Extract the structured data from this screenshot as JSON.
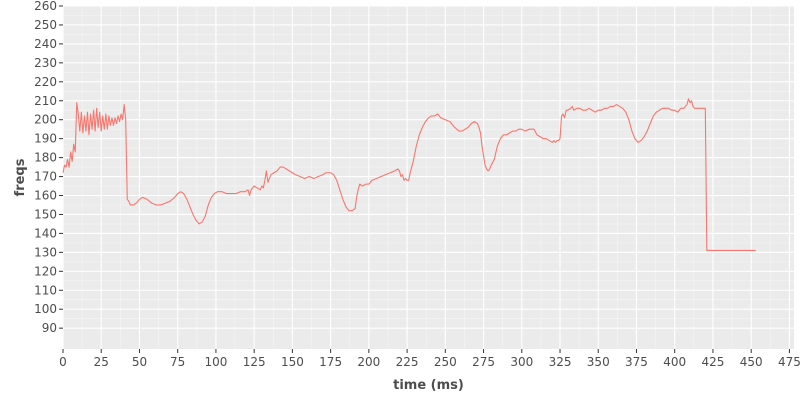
{
  "chart_data": {
    "type": "line",
    "title": "",
    "xlabel": "time (ms)",
    "ylabel": "freqs",
    "xlim": [
      0,
      478
    ],
    "ylim": [
      79,
      260
    ],
    "x_ticks": [
      0,
      25,
      50,
      75,
      100,
      125,
      150,
      175,
      200,
      225,
      250,
      275,
      300,
      325,
      350,
      375,
      400,
      425,
      450,
      475
    ],
    "y_ticks": [
      90,
      100,
      110,
      120,
      130,
      140,
      150,
      160,
      170,
      180,
      190,
      200,
      210,
      220,
      230,
      240,
      250,
      260
    ],
    "grid": true,
    "legend": "none",
    "colors": {
      "panel": "#ebebeb",
      "grid_major": "#ffffff",
      "grid_minor": "#f5f5f5",
      "line": "#f8766d",
      "text": "#4d4d4d",
      "tick": "#333333"
    },
    "series": [
      {
        "points": [
          [
            0,
            172
          ],
          [
            1,
            176
          ],
          [
            2,
            175
          ],
          [
            3,
            179
          ],
          [
            4,
            175
          ],
          [
            5,
            183
          ],
          [
            6,
            178
          ],
          [
            7,
            187
          ],
          [
            8,
            183
          ],
          [
            9,
            209
          ],
          [
            10,
            203
          ],
          [
            11,
            194
          ],
          [
            12,
            204
          ],
          [
            13,
            193
          ],
          [
            14,
            202
          ],
          [
            15,
            194
          ],
          [
            16,
            204
          ],
          [
            17,
            192
          ],
          [
            18,
            203
          ],
          [
            19,
            195
          ],
          [
            20,
            205
          ],
          [
            21,
            194
          ],
          [
            22,
            206
          ],
          [
            23,
            196
          ],
          [
            24,
            204
          ],
          [
            25,
            194
          ],
          [
            26,
            202
          ],
          [
            27,
            195
          ],
          [
            28,
            203
          ],
          [
            29,
            195
          ],
          [
            30,
            202
          ],
          [
            31,
            197
          ],
          [
            32,
            201
          ],
          [
            33,
            197
          ],
          [
            34,
            201
          ],
          [
            35,
            198
          ],
          [
            36,
            202
          ],
          [
            37,
            199
          ],
          [
            38,
            203
          ],
          [
            39,
            200
          ],
          [
            40,
            208
          ],
          [
            41,
            200
          ],
          [
            42,
            158
          ],
          [
            43,
            157
          ],
          [
            44,
            155
          ],
          [
            46,
            155
          ],
          [
            48,
            156
          ],
          [
            50,
            158
          ],
          [
            52,
            159
          ],
          [
            55,
            158
          ],
          [
            58,
            156
          ],
          [
            61,
            155
          ],
          [
            64,
            155
          ],
          [
            67,
            156
          ],
          [
            70,
            157
          ],
          [
            73,
            159
          ],
          [
            75,
            161
          ],
          [
            77,
            162
          ],
          [
            79,
            161
          ],
          [
            81,
            158
          ],
          [
            83,
            154
          ],
          [
            85,
            150
          ],
          [
            87,
            147
          ],
          [
            89,
            145
          ],
          [
            91,
            146
          ],
          [
            93,
            149
          ],
          [
            95,
            155
          ],
          [
            97,
            159
          ],
          [
            99,
            161
          ],
          [
            101,
            162
          ],
          [
            104,
            162
          ],
          [
            107,
            161
          ],
          [
            110,
            161
          ],
          [
            113,
            161
          ],
          [
            116,
            162
          ],
          [
            119,
            162
          ],
          [
            121,
            163
          ],
          [
            122,
            160
          ],
          [
            123,
            163
          ],
          [
            125,
            165
          ],
          [
            127,
            164
          ],
          [
            129,
            163
          ],
          [
            130,
            165
          ],
          [
            131,
            164
          ],
          [
            132,
            168
          ],
          [
            133,
            173
          ],
          [
            134,
            167
          ],
          [
            135,
            169
          ],
          [
            136,
            171
          ],
          [
            138,
            172
          ],
          [
            140,
            173
          ],
          [
            142,
            175
          ],
          [
            144,
            175
          ],
          [
            146,
            174
          ],
          [
            148,
            173
          ],
          [
            150,
            172
          ],
          [
            152,
            171
          ],
          [
            155,
            170
          ],
          [
            158,
            169
          ],
          [
            161,
            170
          ],
          [
            164,
            169
          ],
          [
            167,
            170
          ],
          [
            170,
            171
          ],
          [
            172,
            172
          ],
          [
            175,
            172
          ],
          [
            177,
            171
          ],
          [
            179,
            168
          ],
          [
            181,
            163
          ],
          [
            183,
            158
          ],
          [
            185,
            154
          ],
          [
            187,
            152
          ],
          [
            189,
            152
          ],
          [
            191,
            153
          ],
          [
            192,
            159
          ],
          [
            193,
            163
          ],
          [
            194,
            166
          ],
          [
            196,
            165
          ],
          [
            198,
            166
          ],
          [
            200,
            166
          ],
          [
            202,
            168
          ],
          [
            205,
            169
          ],
          [
            208,
            170
          ],
          [
            211,
            171
          ],
          [
            214,
            172
          ],
          [
            217,
            173
          ],
          [
            219,
            174
          ],
          [
            220,
            173
          ],
          [
            221,
            170
          ],
          [
            222,
            171
          ],
          [
            223,
            168
          ],
          [
            224,
            169
          ],
          [
            225,
            168
          ],
          [
            226,
            168
          ],
          [
            227,
            172
          ],
          [
            229,
            178
          ],
          [
            231,
            186
          ],
          [
            233,
            192
          ],
          [
            235,
            196
          ],
          [
            237,
            199
          ],
          [
            239,
            201
          ],
          [
            241,
            202
          ],
          [
            243,
            202
          ],
          [
            245,
            203
          ],
          [
            247,
            201
          ],
          [
            250,
            200
          ],
          [
            253,
            199
          ],
          [
            256,
            196
          ],
          [
            259,
            194
          ],
          [
            261,
            194
          ],
          [
            263,
            195
          ],
          [
            265,
            196
          ],
          [
            267,
            198
          ],
          [
            269,
            199
          ],
          [
            271,
            198
          ],
          [
            272,
            196
          ],
          [
            273,
            193
          ],
          [
            274,
            186
          ],
          [
            275,
            181
          ],
          [
            276,
            176
          ],
          [
            277,
            174
          ],
          [
            278,
            173
          ],
          [
            279,
            174
          ],
          [
            280,
            176
          ],
          [
            282,
            179
          ],
          [
            284,
            186
          ],
          [
            286,
            190
          ],
          [
            288,
            192
          ],
          [
            290,
            192
          ],
          [
            292,
            193
          ],
          [
            294,
            194
          ],
          [
            296,
            194
          ],
          [
            298,
            195
          ],
          [
            300,
            195
          ],
          [
            302,
            194
          ],
          [
            305,
            195
          ],
          [
            308,
            195
          ],
          [
            310,
            192
          ],
          [
            312,
            191
          ],
          [
            314,
            190
          ],
          [
            316,
            190
          ],
          [
            318,
            189
          ],
          [
            320,
            188
          ],
          [
            321,
            189
          ],
          [
            322,
            188
          ],
          [
            323,
            189
          ],
          [
            324,
            189
          ],
          [
            325,
            190
          ],
          [
            326,
            202
          ],
          [
            327,
            203
          ],
          [
            328,
            201
          ],
          [
            329,
            205
          ],
          [
            330,
            205
          ],
          [
            332,
            206
          ],
          [
            333,
            207
          ],
          [
            334,
            205
          ],
          [
            336,
            206
          ],
          [
            338,
            206
          ],
          [
            340,
            205
          ],
          [
            342,
            205
          ],
          [
            344,
            206
          ],
          [
            346,
            205
          ],
          [
            348,
            204
          ],
          [
            350,
            205
          ],
          [
            352,
            205
          ],
          [
            354,
            206
          ],
          [
            356,
            206
          ],
          [
            358,
            207
          ],
          [
            360,
            207
          ],
          [
            362,
            208
          ],
          [
            364,
            207
          ],
          [
            366,
            206
          ],
          [
            368,
            204
          ],
          [
            370,
            200
          ],
          [
            372,
            194
          ],
          [
            374,
            190
          ],
          [
            376,
            188
          ],
          [
            378,
            189
          ],
          [
            380,
            191
          ],
          [
            382,
            194
          ],
          [
            384,
            198
          ],
          [
            386,
            202
          ],
          [
            388,
            204
          ],
          [
            390,
            205
          ],
          [
            392,
            206
          ],
          [
            394,
            206
          ],
          [
            396,
            206
          ],
          [
            398,
            205
          ],
          [
            400,
            205
          ],
          [
            402,
            204
          ],
          [
            403,
            205
          ],
          [
            404,
            206
          ],
          [
            406,
            206
          ],
          [
            408,
            208
          ],
          [
            409,
            211
          ],
          [
            410,
            209
          ],
          [
            411,
            210
          ],
          [
            412,
            207
          ],
          [
            413,
            206
          ],
          [
            416,
            206
          ],
          [
            419,
            206
          ],
          [
            420,
            206
          ],
          [
            421,
            131
          ],
          [
            425,
            131
          ],
          [
            430,
            131
          ],
          [
            435,
            131
          ],
          [
            440,
            131
          ],
          [
            445,
            131
          ],
          [
            450,
            131
          ],
          [
            453,
            131
          ]
        ]
      }
    ]
  }
}
